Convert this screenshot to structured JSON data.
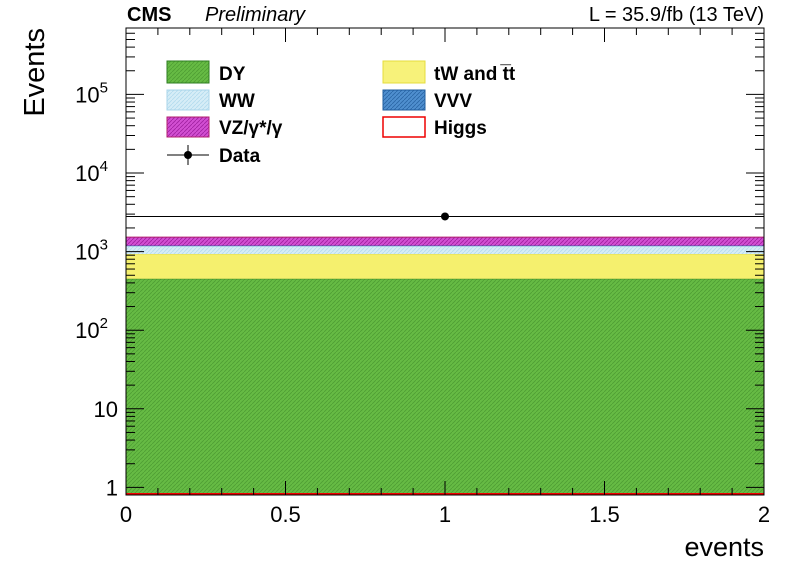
{
  "header": {
    "experiment": "CMS",
    "status": "Preliminary",
    "lumi": "L = 35.9/fb (13 TeV)"
  },
  "chart_data": {
    "type": "bar",
    "stacked": true,
    "xlabel": "events",
    "ylabel": "Events",
    "xlim": [
      0,
      2
    ],
    "ylim": [
      0.8,
      700000
    ],
    "log_y": true,
    "grid": false,
    "legend_position": "top-left",
    "x_ticks": [
      "0",
      "0.5",
      "1",
      "1.5",
      "2"
    ],
    "x_tick_values": [
      0,
      0.5,
      1,
      1.5,
      2
    ],
    "y_ticks": [
      {
        "value": 1,
        "base": "1",
        "exp": ""
      },
      {
        "value": 10,
        "base": "10",
        "exp": ""
      },
      {
        "value": 100,
        "base": "10",
        "exp": "2"
      },
      {
        "value": 1000,
        "base": "10",
        "exp": "3"
      },
      {
        "value": 10000,
        "base": "10",
        "exp": "4"
      },
      {
        "value": 100000,
        "base": "10",
        "exp": "5"
      }
    ],
    "bin": [
      0,
      2
    ],
    "series": [
      {
        "name": "DY",
        "value": 450,
        "color": "#66bb44",
        "border": "#2e7d22"
      },
      {
        "name": "tW and t̅t",
        "value": 480,
        "color": "#f5f06e",
        "border": "#e6dc3c"
      },
      {
        "name": "WW",
        "value": 250,
        "color": "#cfe9f5",
        "border": "#a8d4ea"
      },
      {
        "name": "VVV",
        "value": 10,
        "color": "#3d7fc2",
        "border": "#1f5c9e"
      },
      {
        "name": "VZ/γ*/γ",
        "value": 340,
        "color": "#cc33cc",
        "border": "#b01e6e"
      },
      {
        "name": "Higgs",
        "value": 4,
        "color": "#ffffff",
        "border": "#ee0000"
      }
    ],
    "data_points": [
      {
        "x": 1,
        "y": 2800,
        "label": "Data"
      }
    ],
    "legend": {
      "col1": [
        {
          "label": "DY",
          "key": "DY"
        },
        {
          "label": "WW",
          "key": "WW"
        },
        {
          "label": "VZ/γ*/γ",
          "key": "VZ"
        },
        {
          "label": "Data",
          "key": "Data"
        }
      ],
      "col2": [
        {
          "label": "tW and t̅t",
          "key": "TT"
        },
        {
          "label": "VVV",
          "key": "VVV"
        },
        {
          "label": "Higgs",
          "key": "Higgs"
        }
      ]
    }
  }
}
